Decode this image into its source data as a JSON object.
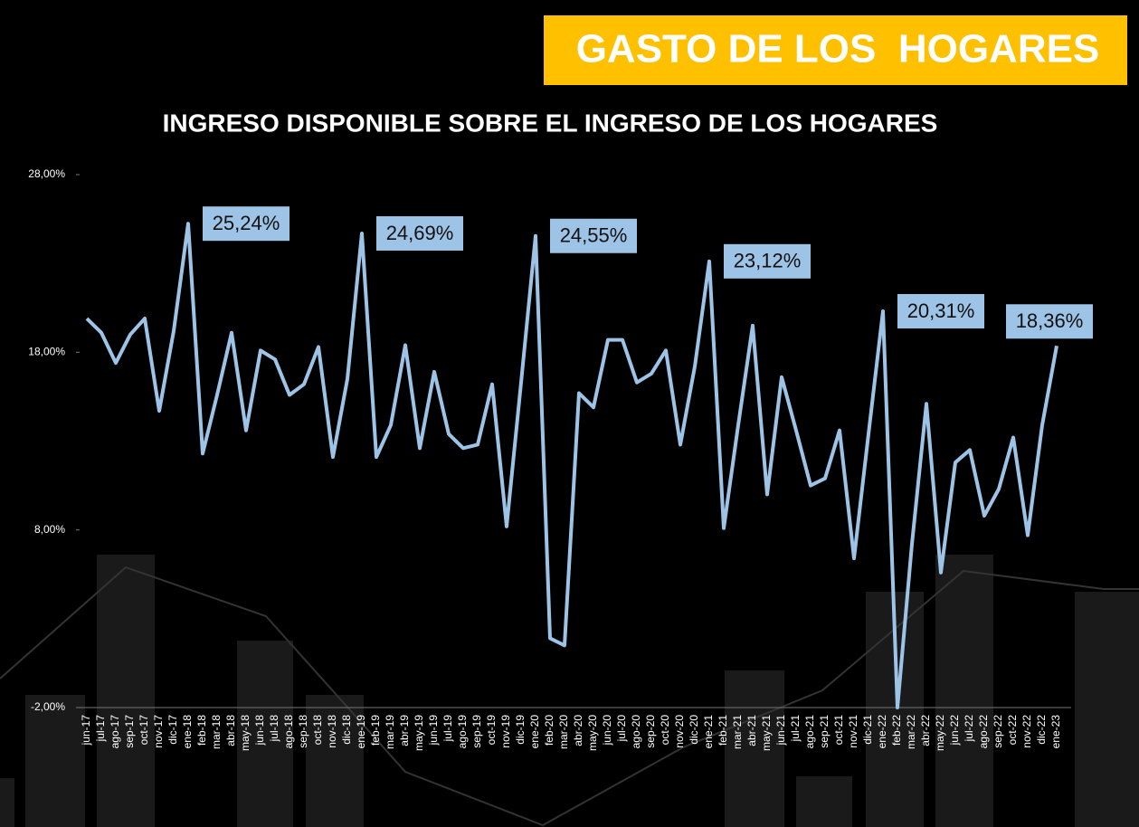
{
  "header": "GASTO DE LOS  HOGARES",
  "chart_data": {
    "type": "line",
    "title": "INGRESO DISPONIBLE SOBRE EL INGRESO DE LOS HOGARES",
    "categories": [
      "jun-17",
      "jul-17",
      "ago-17",
      "sep-17",
      "oct-17",
      "nov-17",
      "dic-17",
      "ene-18",
      "feb-18",
      "mar-18",
      "abr-18",
      "may-18",
      "jun-18",
      "jul-18",
      "ago-18",
      "sep-18",
      "oct-18",
      "nov-18",
      "dic-18",
      "ene-19",
      "feb-19",
      "mar-19",
      "abr-19",
      "may-19",
      "jun-19",
      "jul-19",
      "ago-19",
      "sep-19",
      "oct-19",
      "nov-19",
      "dic-19",
      "ene-20",
      "feb-20",
      "mar-20",
      "abr-20",
      "may-20",
      "jun-20",
      "jul-20",
      "ago-20",
      "sep-20",
      "oct-20",
      "nov-20",
      "dic-20",
      "ene-21",
      "feb-21",
      "mar-21",
      "abr-21",
      "may-21",
      "jun-21",
      "jul-21",
      "ago-21",
      "sep-21",
      "oct-21",
      "nov-21",
      "dic-21",
      "ene-22",
      "feb-22",
      "mar-22",
      "abr-22",
      "may-22",
      "jun-22",
      "jul-22",
      "ago-22",
      "sep-22",
      "oct-22",
      "nov-22",
      "dic-22",
      "ene-23"
    ],
    "values": [
      19.9,
      19.1,
      17.4,
      19.0,
      19.9,
      14.7,
      19.2,
      25.24,
      12.3,
      15.6,
      19.1,
      13.6,
      18.1,
      17.6,
      15.6,
      16.2,
      18.3,
      12.1,
      16.5,
      24.69,
      12.1,
      13.9,
      18.4,
      12.6,
      16.9,
      13.4,
      12.6,
      12.8,
      16.2,
      8.2,
      16.3,
      24.55,
      1.9,
      1.5,
      15.7,
      14.9,
      18.7,
      18.7,
      16.3,
      16.8,
      18.1,
      12.8,
      17.2,
      23.12,
      8.1,
      13.9,
      19.5,
      10.0,
      16.6,
      13.6,
      10.5,
      10.9,
      13.6,
      6.4,
      13.4,
      20.31,
      -2.0,
      7.2,
      15.1,
      5.6,
      11.8,
      12.5,
      8.8,
      10.3,
      13.2,
      7.7,
      13.9,
      18.36
    ],
    "value_labels": [
      null,
      null,
      null,
      null,
      null,
      null,
      null,
      "25,24%",
      null,
      null,
      null,
      null,
      null,
      null,
      null,
      null,
      null,
      null,
      null,
      "24,69%",
      null,
      null,
      null,
      null,
      null,
      null,
      null,
      null,
      null,
      null,
      null,
      "24,55%",
      null,
      null,
      null,
      null,
      null,
      null,
      null,
      null,
      null,
      null,
      null,
      "23,12%",
      null,
      null,
      null,
      null,
      null,
      null,
      null,
      null,
      null,
      null,
      null,
      "20,31%",
      null,
      null,
      null,
      null,
      null,
      null,
      null,
      null,
      null,
      null,
      null,
      "18,36%"
    ],
    "color": "#9dc3e6",
    "ylim": [
      -2,
      28
    ],
    "yticks": [
      {
        "value": -2,
        "label": "-2,00%"
      },
      {
        "value": 8,
        "label": "8,00%"
      },
      {
        "value": 18,
        "label": "18,00%"
      },
      {
        "value": 28,
        "label": "28,00%"
      }
    ]
  }
}
